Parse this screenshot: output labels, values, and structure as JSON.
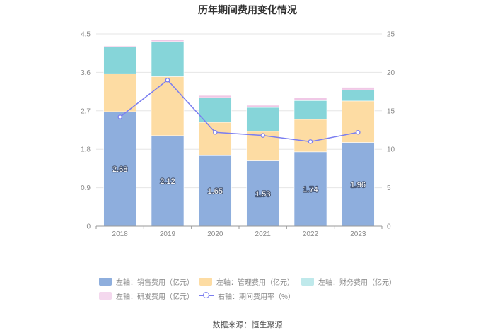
{
  "chart_data": {
    "type": "bar",
    "title": "历年期间费用变化情况",
    "categories": [
      "2018",
      "2019",
      "2020",
      "2021",
      "2022",
      "2023"
    ],
    "stacked": true,
    "left_axis": {
      "ylim": [
        0,
        4.5
      ],
      "ticks": [
        "0",
        "0.9",
        "1.8",
        "2.7",
        "3.6",
        "4.5"
      ]
    },
    "right_axis": {
      "ylim": [
        0,
        25
      ],
      "ticks": [
        "0",
        "5",
        "10",
        "15",
        "20",
        "25"
      ]
    },
    "grid": true,
    "legend_position": "bottom",
    "series": [
      {
        "name": "左轴：销售费用（亿元）",
        "axis": "left",
        "type": "bar",
        "color": "#8eaedd",
        "values": [
          2.68,
          2.12,
          1.65,
          1.53,
          1.74,
          1.96
        ],
        "labels": [
          "2.68",
          "2.12",
          "1.65",
          "1.53",
          "1.74",
          "1.96"
        ]
      },
      {
        "name": "左轴：管理费用（亿元）",
        "axis": "left",
        "type": "bar",
        "color": "#fddca3",
        "values": [
          0.89,
          1.38,
          0.78,
          0.69,
          0.76,
          0.97
        ]
      },
      {
        "name": "左轴：财务费用（亿元）",
        "axis": "left",
        "type": "bar",
        "color": "#86d5d9",
        "values": [
          0.63,
          0.82,
          0.58,
          0.56,
          0.44,
          0.26
        ]
      },
      {
        "name": "左轴：研发费用（亿元）",
        "axis": "left",
        "type": "bar",
        "color": "#f0c8e6",
        "values": [
          0.02,
          0.04,
          0.05,
          0.05,
          0.06,
          0.06
        ]
      },
      {
        "name": "右轴：期间费用率（%）",
        "axis": "right",
        "type": "line",
        "color": "#7b7ef0",
        "values": [
          14.2,
          19.0,
          12.2,
          11.8,
          11.0,
          12.2
        ]
      }
    ]
  },
  "source": "数据来源：恒生聚源"
}
